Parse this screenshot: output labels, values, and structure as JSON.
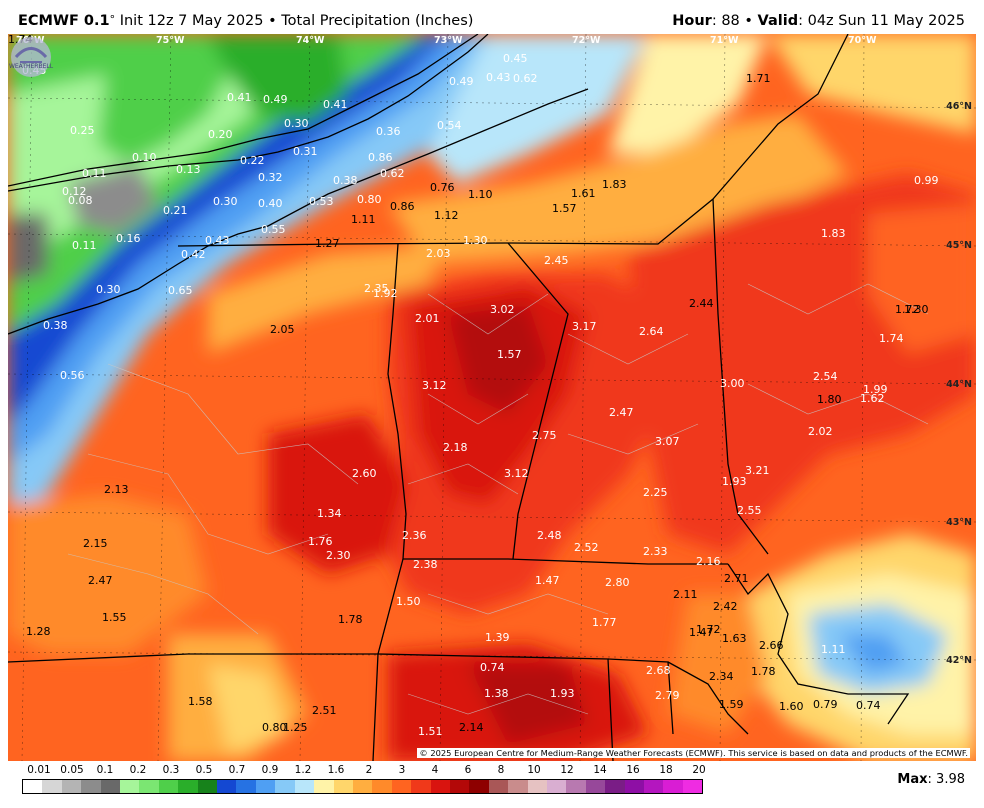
{
  "header": {
    "model": "ECMWF 0.1",
    "deg": "°",
    "init_text": " Init 12z 7 May 2025 • Total Precipitation (Inches)",
    "hour_label": "Hour",
    "hour_value": ": 88 • ",
    "valid_label": "Valid",
    "valid_value": ": 04z Sun 11 May 2025"
  },
  "map": {
    "longitudes": [
      "76°W",
      "75°W",
      "74°W",
      "73°W",
      "72°W",
      "71°W",
      "70°W"
    ],
    "latitudes": [
      "46°N",
      "45°N",
      "44°N",
      "43°N",
      "42°N"
    ],
    "credit": "© 2025 European Centre for Medium-Range Weather Forecasts (ECMWF). This service is based on data and products of the ECMWF.",
    "values": [
      "0.45",
      "0.41",
      "0.49",
      "0.41",
      "0.25",
      "0.20",
      "0.30",
      "0.10",
      "0.13",
      "0.22",
      "0.31",
      "0.11",
      "0.12",
      "0.08",
      "0.21",
      "0.30",
      "0.32",
      "0.38",
      "0.36",
      "0.86",
      "0.62",
      "0.40",
      "0.53",
      "0.80",
      "0.55",
      "0.11",
      "0.16",
      "0.43",
      "0.42",
      "0.30",
      "0.65",
      "0.38",
      "0.56",
      "0.45",
      "0.43",
      "0.62",
      "0.49",
      "0.54",
      "0.76",
      "1.10",
      "0.86",
      "1.12",
      "1.11",
      "1.27",
      "1.30",
      "2.03",
      "1.83",
      "1.61",
      "1.57",
      "1.71",
      "0.99",
      "1.83",
      "2.45",
      "2.35",
      "1.92",
      "2.01",
      "3.02",
      "3.17",
      "2.64",
      "2.44",
      "1.72",
      "1.74",
      "2.05",
      "1.57",
      "3.12",
      "3.00",
      "2.54",
      "1.80",
      "1.62",
      "1.99",
      "2.47",
      "2.75",
      "3.07",
      "2.02",
      "2.18",
      "2.60",
      "3.12",
      "3.21",
      "1.93",
      "2.25",
      "2.13",
      "1.34",
      "2.55",
      "2.15",
      "1.76",
      "2.30",
      "2.36",
      "2.48",
      "2.52",
      "2.33",
      "2.16",
      "2.38",
      "2.47",
      "1.47",
      "2.80",
      "2.71",
      "1.50",
      "2.11",
      "1.55",
      "1.78",
      "1.77",
      "2.42",
      "1.28",
      "1.47",
      "1.72",
      "1.63",
      "1.39",
      "2.66",
      "1.11",
      "0.74",
      "2.68",
      "2.34",
      "1.78",
      "1.58",
      "1.38",
      "1.93",
      "2.79",
      "2.51",
      "1.59",
      "1.60",
      "0.79",
      "0.74",
      "0.80",
      "1.25",
      "1.51",
      "2.14",
      "1.30",
      "1.74"
    ]
  },
  "legend": {
    "ticks": [
      "0.01",
      "0.05",
      "0.1",
      "0.2",
      "0.3",
      "0.5",
      "0.7",
      "0.9",
      "1.2",
      "1.6",
      "2",
      "3",
      "4",
      "6",
      "8",
      "10",
      "12",
      "14",
      "16",
      "18",
      "20"
    ],
    "colors": [
      "#ffffff",
      "#d6d6d6",
      "#b4b4b4",
      "#8c8c8c",
      "#696969",
      "#a6f59a",
      "#7be672",
      "#4fcf4a",
      "#2aae2a",
      "#17821b",
      "#1448d2",
      "#2672e3",
      "#4f9ff3",
      "#86c9f7",
      "#b8e6fa",
      "#fff3a8",
      "#ffd66b",
      "#ffae40",
      "#ff8a2a",
      "#ff6420",
      "#f0391a",
      "#d9140f",
      "#b30808",
      "#8e0000",
      "#a95757",
      "#c98c8c",
      "#e6c2c2",
      "#d9aed1",
      "#b879b0",
      "#97489a",
      "#7a1d86",
      "#8e0fa5",
      "#b416bf",
      "#d91dd4",
      "#ef2ce2"
    ],
    "max_label": "Max",
    "max_value": ": 3.98"
  }
}
